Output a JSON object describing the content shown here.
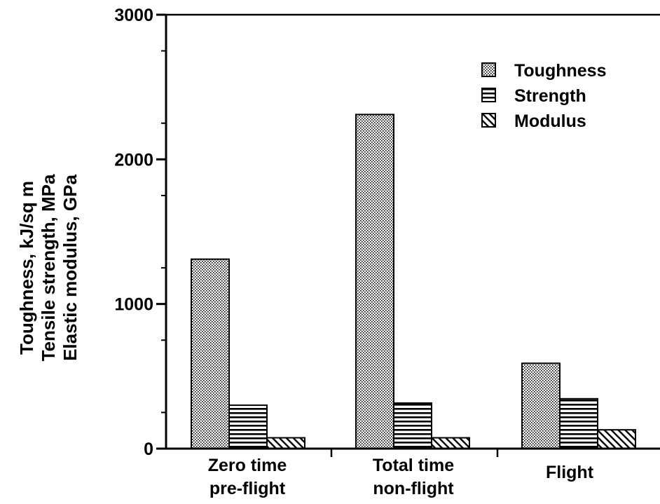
{
  "chart_data": {
    "type": "bar",
    "categories": [
      [
        "Zero time",
        "pre-flight"
      ],
      [
        "Total time",
        "non-flight"
      ],
      [
        "Flight"
      ]
    ],
    "series": [
      {
        "name": "Toughness",
        "values": [
          1310,
          2310,
          590
        ],
        "pattern": "dots"
      },
      {
        "name": "Strength",
        "values": [
          300,
          315,
          345
        ],
        "pattern": "hlines"
      },
      {
        "name": "Modulus",
        "values": [
          75,
          75,
          130
        ],
        "pattern": "diag"
      }
    ],
    "ylabel": [
      "Toughness, kJ/sq m",
      "Tensile strength, MPa",
      "Elastic modulus, GPa"
    ],
    "xlabel": "",
    "ylim": [
      0,
      3000
    ],
    "yticks": [
      "0",
      "1000",
      "2000",
      "3000"
    ],
    "grid": false,
    "legend_position": "top-right"
  }
}
